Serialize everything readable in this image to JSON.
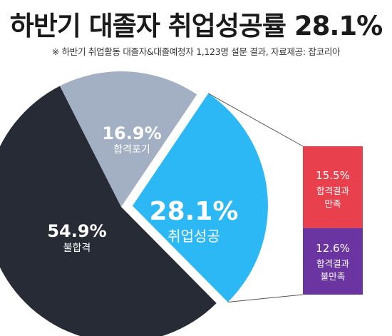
{
  "header": {
    "title": "하반기 대졸자 취업성공률 28.1%",
    "subtitle": "※ 하반기 취업활동 대졸자&대졸예정자 1,123명 설문 결과,  자료제공: 잡코리아"
  },
  "colors": {
    "success": "#2bb8f5",
    "giveup": "#a3b0c4",
    "fail": "#262b36",
    "satisfied": "#e8404d",
    "unsatisfied": "#6a35a0"
  },
  "chart_data": [
    {
      "type": "pie",
      "title": "하반기 대졸자 취업성공률 28.1%",
      "slices": [
        {
          "label": "취업성공",
          "value": 28.1,
          "display": "28.1%",
          "color": "#2bb8f5"
        },
        {
          "label": "불합격",
          "value": 54.9,
          "display": "54.9%",
          "color": "#262b36"
        },
        {
          "label": "합격포기",
          "value": 16.9,
          "display": "16.9%",
          "color": "#a3b0c4"
        }
      ]
    },
    {
      "type": "bar",
      "stacked": true,
      "categories": [
        "합격결과 만족",
        "합격결과 불만족"
      ],
      "values": [
        15.5,
        12.6
      ],
      "labels": [
        {
          "value": "15.5%",
          "line1": "합격결과",
          "line2": "만족",
          "color": "#e8404d"
        },
        {
          "value": "12.6%",
          "line1": "합격결과",
          "line2": "불만족",
          "color": "#6a35a0"
        }
      ]
    }
  ]
}
